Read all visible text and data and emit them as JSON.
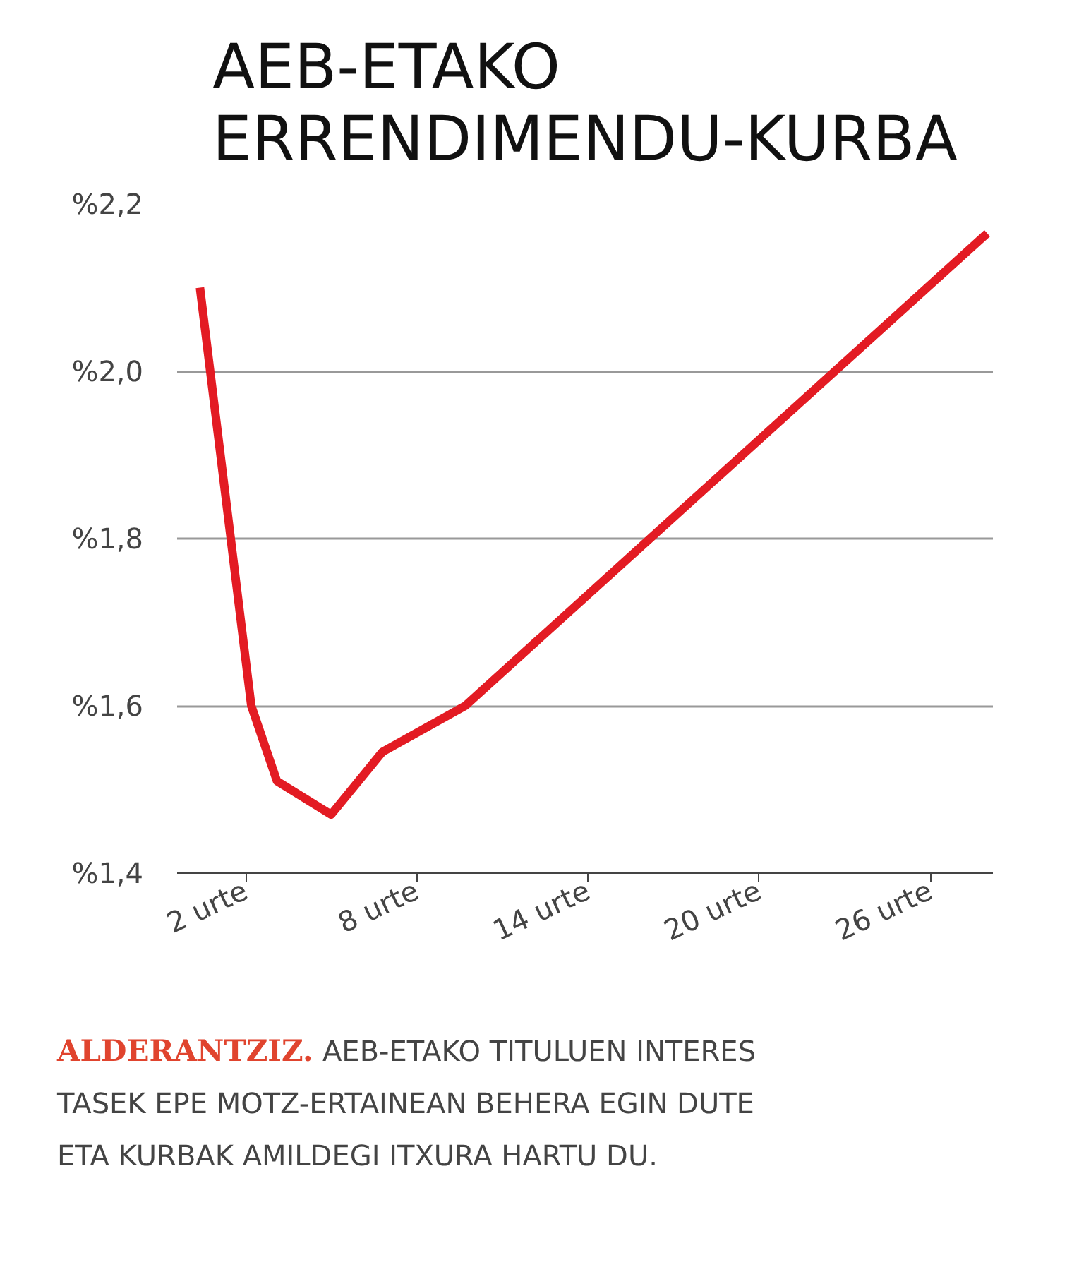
{
  "chart_data": {
    "type": "line",
    "title": "AEB-ETAKO ERRENDIMENDU-KURBA",
    "x": [
      0.4,
      2.2,
      3.1,
      5.0,
      6.8,
      9.7,
      28.0
    ],
    "series": [
      {
        "color": "#e31b23",
        "values": [
          2.1,
          1.6,
          1.51,
          1.47,
          1.545,
          1.6,
          2.165
        ]
      }
    ],
    "xlim": [
      -0.4,
      28.2
    ],
    "ylim": [
      1.4,
      2.2
    ],
    "xticks": [
      {
        "value": 2,
        "label": "2 urte"
      },
      {
        "value": 8,
        "label": "8 urte"
      },
      {
        "value": 14,
        "label": "14 urte"
      },
      {
        "value": 20,
        "label": "20 urte"
      },
      {
        "value": 26,
        "label": "26 urte"
      }
    ],
    "yticks": [
      {
        "value": 1.4,
        "label": "%1,4"
      },
      {
        "value": 1.6,
        "label": "%1,6"
      },
      {
        "value": 1.8,
        "label": "%1,8"
      },
      {
        "value": 2.0,
        "label": "%2,0"
      },
      {
        "value": 2.2,
        "label": "%2,2"
      }
    ],
    "grid": "y",
    "marker": "none",
    "line_style": "solid",
    "annotations": [
      "ALDERANTZIZ. AEB-ETAKO TITULUEN INTERES TASEK EPE MOTZ-ERTAINEAN BEHERA EGIN DUTE ETA KURBAK AMILDEGI ITXURA HARTU DU."
    ]
  }
}
